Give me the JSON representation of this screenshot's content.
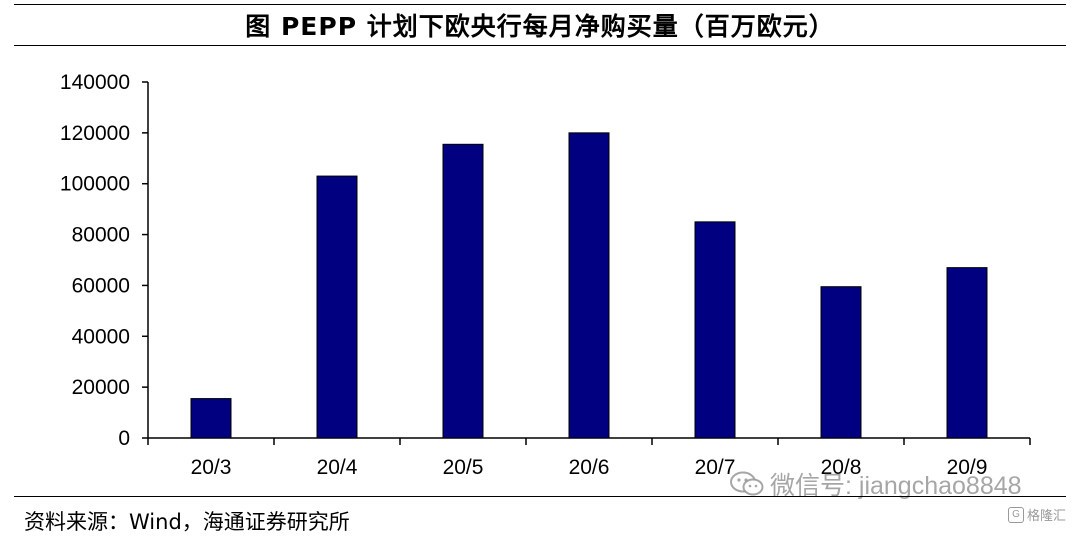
{
  "title": "图  PEPP 计划下欧央行每月净购买量（百万欧元）",
  "source": "资料来源：Wind，海通证券研究所",
  "watermark": {
    "text": "微信号: jiangchao8848",
    "icon": "wechat-icon"
  },
  "brand": {
    "text": "格隆汇",
    "icon": "brand-logo-icon"
  },
  "colors": {
    "bar": "#000080",
    "axis": "#000000"
  },
  "chart_data": {
    "type": "bar",
    "title": "",
    "xlabel": "",
    "ylabel": "",
    "categories": [
      "20/3",
      "20/4",
      "20/5",
      "20/6",
      "20/7",
      "20/8",
      "20/9"
    ],
    "values": [
      15500,
      103000,
      115500,
      120000,
      85000,
      59500,
      67000
    ],
    "ylim": [
      0,
      140000
    ],
    "yticks": [
      0,
      20000,
      40000,
      60000,
      80000,
      100000,
      120000,
      140000
    ],
    "grid": false,
    "legend": "none"
  }
}
